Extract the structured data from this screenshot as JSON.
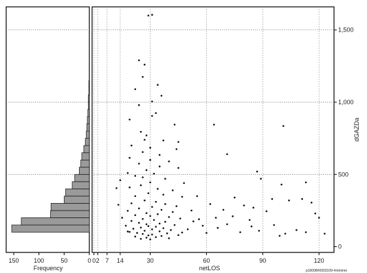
{
  "chart_data": [
    {
      "type": "bar",
      "orientation": "horizontal",
      "xlabel": "Frequency",
      "x_axis_reversed": true,
      "xlim": [
        165,
        0
      ],
      "x_ticks": [
        "150",
        "100",
        "50",
        "0"
      ],
      "ylim": [
        -40,
        1660
      ],
      "bin_width": 50,
      "bins": [
        {
          "y": 125,
          "value": 154
        },
        {
          "y": 175,
          "value": 135
        },
        {
          "y": 225,
          "value": 77
        },
        {
          "y": 275,
          "value": 76
        },
        {
          "y": 325,
          "value": 50
        },
        {
          "y": 375,
          "value": 47
        },
        {
          "y": 425,
          "value": 34
        },
        {
          "y": 475,
          "value": 29
        },
        {
          "y": 525,
          "value": 20
        },
        {
          "y": 575,
          "value": 17
        },
        {
          "y": 625,
          "value": 15
        },
        {
          "y": 675,
          "value": 11
        },
        {
          "y": 725,
          "value": 8
        },
        {
          "y": 775,
          "value": 6
        },
        {
          "y": 825,
          "value": 5
        },
        {
          "y": 875,
          "value": 4
        },
        {
          "y": 925,
          "value": 3
        },
        {
          "y": 975,
          "value": 2
        },
        {
          "y": 1025,
          "value": 2
        },
        {
          "y": 1075,
          "value": 1
        },
        {
          "y": 1125,
          "value": 1
        }
      ],
      "grid": true
    },
    {
      "type": "scatter",
      "xlabel": "netLOS",
      "ylabel": "dGAZDa",
      "xlim": [
        -1,
        128
      ],
      "ylim": [
        -40,
        1660
      ],
      "x_tick_labels": [
        {
          "x": 0,
          "label": "0"
        },
        {
          "x": 2,
          "label": "2"
        },
        {
          "x": 7,
          "label": "7"
        },
        {
          "x": 14,
          "label": "14"
        },
        {
          "x": 30,
          "label": "30"
        },
        {
          "x": 60,
          "label": "60"
        },
        {
          "x": 90,
          "label": "90"
        },
        {
          "x": 120,
          "label": "120"
        }
      ],
      "y_tick_labels": [
        "0",
        "500",
        "1,000",
        "1,500"
      ],
      "y_ticks": [
        0,
        500,
        1000,
        1500
      ],
      "vertical_reference_lines": [
        0,
        2,
        7,
        14,
        30,
        60,
        90,
        120
      ],
      "horizontal_grid": [
        500,
        1000,
        1500
      ],
      "footnote": "p10008#0003109-#mmmm",
      "points": [
        [
          29,
          1600
        ],
        [
          31,
          1605
        ],
        [
          24,
          1290
        ],
        [
          27,
          1260
        ],
        [
          26,
          1175
        ],
        [
          34,
          1120
        ],
        [
          22,
          1090
        ],
        [
          36,
          1045
        ],
        [
          31,
          1005
        ],
        [
          24,
          980
        ],
        [
          33,
          925
        ],
        [
          31,
          905
        ],
        [
          19,
          880
        ],
        [
          43,
          845
        ],
        [
          64,
          845
        ],
        [
          101,
          835
        ],
        [
          25,
          795
        ],
        [
          28,
          770
        ],
        [
          27,
          740
        ],
        [
          37,
          735
        ],
        [
          45,
          725
        ],
        [
          20,
          700
        ],
        [
          30,
          685
        ],
        [
          44,
          675
        ],
        [
          26,
          655
        ],
        [
          35,
          635
        ],
        [
          71,
          640
        ],
        [
          19,
          615
        ],
        [
          30,
          600
        ],
        [
          40,
          590
        ],
        [
          24,
          575
        ],
        [
          35,
          555
        ],
        [
          45,
          545
        ],
        [
          28,
          530
        ],
        [
          87,
          520
        ],
        [
          18,
          510
        ],
        [
          32,
          505
        ],
        [
          22,
          490
        ],
        [
          26,
          480
        ],
        [
          38,
          470
        ],
        [
          89,
          470
        ],
        [
          14,
          460
        ],
        [
          30,
          445
        ],
        [
          48,
          440
        ],
        [
          100,
          430
        ],
        [
          113,
          445
        ],
        [
          25,
          425
        ],
        [
          19,
          410
        ],
        [
          34,
          400
        ],
        [
          42,
          390
        ],
        [
          12,
          405
        ],
        [
          29,
          370
        ],
        [
          37,
          360
        ],
        [
          22,
          350
        ],
        [
          47,
          345
        ],
        [
          55,
          350
        ],
        [
          75,
          340
        ],
        [
          95,
          330
        ],
        [
          104,
          320
        ],
        [
          111,
          330
        ],
        [
          116,
          305
        ],
        [
          27,
          320
        ],
        [
          33,
          310
        ],
        [
          20,
          300
        ],
        [
          38,
          295
        ],
        [
          13,
          290
        ],
        [
          44,
          280
        ],
        [
          62,
          295
        ],
        [
          80,
          285
        ],
        [
          85,
          270
        ],
        [
          31,
          275
        ],
        [
          24,
          265
        ],
        [
          36,
          255
        ],
        [
          18,
          248
        ],
        [
          42,
          240
        ],
        [
          52,
          250
        ],
        [
          69,
          255
        ],
        [
          92,
          245
        ],
        [
          118,
          230
        ],
        [
          120,
          200
        ],
        [
          28,
          232
        ],
        [
          34,
          225
        ],
        [
          22,
          218
        ],
        [
          30,
          212
        ],
        [
          40,
          205
        ],
        [
          15,
          200
        ],
        [
          46,
          195
        ],
        [
          56,
          190
        ],
        [
          65,
          200
        ],
        [
          74,
          210
        ],
        [
          83,
          185
        ],
        [
          26,
          192
        ],
        [
          32,
          185
        ],
        [
          20,
          178
        ],
        [
          38,
          172
        ],
        [
          24,
          165
        ],
        [
          35,
          160
        ],
        [
          28,
          155
        ],
        [
          43,
          150
        ],
        [
          17,
          145
        ],
        [
          58,
          145
        ],
        [
          71,
          155
        ],
        [
          96,
          150
        ],
        [
          29,
          142
        ],
        [
          33,
          138
        ],
        [
          25,
          132
        ],
        [
          37,
          128
        ],
        [
          21,
          124
        ],
        [
          31,
          120
        ],
        [
          41,
          115
        ],
        [
          27,
          110
        ],
        [
          35,
          106
        ],
        [
          19,
          102
        ],
        [
          47,
          98
        ],
        [
          23,
          95
        ],
        [
          39,
          92
        ],
        [
          26,
          88
        ],
        [
          31,
          84
        ],
        [
          45,
          80
        ],
        [
          60,
          95
        ],
        [
          78,
          100
        ],
        [
          88,
          110
        ],
        [
          102,
          90
        ],
        [
          123,
          90
        ],
        [
          29,
          78
        ],
        [
          36,
          74
        ],
        [
          22,
          70
        ],
        [
          33,
          66
        ],
        [
          28,
          62
        ],
        [
          40,
          58
        ],
        [
          25,
          54
        ],
        [
          30,
          50
        ],
        [
          18,
          105
        ],
        [
          50,
          120
        ],
        [
          53,
          175
        ],
        [
          66,
          130
        ],
        [
          84,
          140
        ],
        [
          99,
          75
        ],
        [
          108,
          115
        ],
        [
          113,
          100
        ]
      ]
    }
  ]
}
